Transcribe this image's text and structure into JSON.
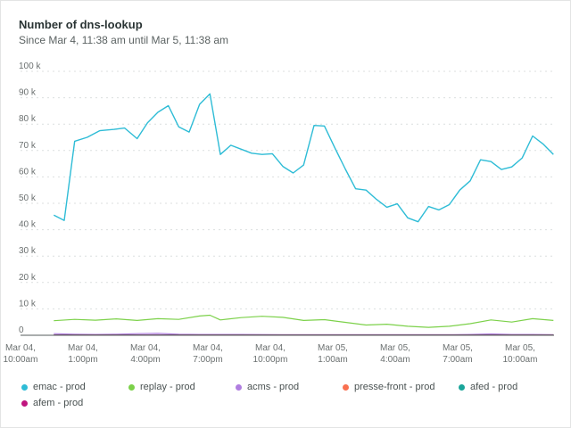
{
  "header": {
    "title": "Number of dns-lookup",
    "subtitle": "Since Mar 4, 11:38 am until Mar 5, 11:38 am"
  },
  "colors": {
    "emac": "#2ebcd6",
    "replay": "#7cd14a",
    "acms": "#b07ee0",
    "presse_front": "#f97050",
    "afed": "#1aa59a",
    "afem": "#c0157f",
    "grid": "#dcdfdf",
    "axis": "#555b5b"
  },
  "legend": [
    {
      "name": "emac - prod",
      "color": "#2ebcd6"
    },
    {
      "name": "replay - prod",
      "color": "#7cd14a"
    },
    {
      "name": "acms - prod",
      "color": "#b07ee0"
    },
    {
      "name": "presse-front - prod",
      "color": "#f97050"
    },
    {
      "name": "afed - prod",
      "color": "#1aa59a"
    },
    {
      "name": "afem - prod",
      "color": "#c0157f"
    }
  ],
  "chart_data": {
    "type": "line",
    "title": "Number of dns-lookup",
    "subtitle": "Since Mar 4, 11:38 am until Mar 5, 11:38 am",
    "ylim": [
      0,
      100000
    ],
    "y_ticks": [
      "0",
      "10 k",
      "20 k",
      "30 k",
      "40 k",
      "50 k",
      "60 k",
      "70 k",
      "80 k",
      "90 k",
      "100 k"
    ],
    "x_ticks": [
      {
        "line1": "Mar 04,",
        "line2": "10:00am",
        "t": 10
      },
      {
        "line1": "Mar 04,",
        "line2": "1:00pm",
        "t": 13
      },
      {
        "line1": "Mar 04,",
        "line2": "4:00pm",
        "t": 16
      },
      {
        "line1": "Mar 04,",
        "line2": "7:00pm",
        "t": 19
      },
      {
        "line1": "Mar 04,",
        "line2": "10:00pm",
        "t": 22
      },
      {
        "line1": "Mar 05,",
        "line2": "1:00am",
        "t": 25
      },
      {
        "line1": "Mar 05,",
        "line2": "4:00am",
        "t": 28
      },
      {
        "line1": "Mar 05,",
        "line2": "7:00am",
        "t": 31
      },
      {
        "line1": "Mar 05,",
        "line2": "10:00am",
        "t": 34
      }
    ],
    "x_range_hours": [
      10.0,
      35.63
    ],
    "grid": true,
    "legend_position": "bottom",
    "series": [
      {
        "name": "emac - prod",
        "color": "#2ebcd6",
        "t": [
          11.6,
          12.1,
          12.6,
          13.2,
          13.8,
          14.5,
          15.0,
          15.6,
          16.1,
          16.6,
          17.1,
          17.6,
          18.1,
          18.6,
          19.1,
          19.6,
          20.1,
          20.6,
          21.1,
          21.6,
          22.1,
          22.6,
          23.1,
          23.6,
          24.1,
          24.6,
          25.1,
          25.6,
          26.1,
          26.6,
          27.1,
          27.6,
          28.1,
          28.6,
          29.1,
          29.6,
          30.1,
          30.6,
          31.1,
          31.6,
          32.1,
          32.6,
          33.1,
          33.6,
          34.1,
          34.6,
          35.1,
          35.6
        ],
        "values": [
          45500,
          43500,
          73500,
          75000,
          77500,
          78000,
          78500,
          74500,
          80500,
          84500,
          87000,
          79000,
          77000,
          87500,
          91500,
          68500,
          72000,
          70500,
          69000,
          68500,
          68800,
          64000,
          61500,
          64500,
          79500,
          79300,
          71000,
          63000,
          55500,
          55000,
          51500,
          48500,
          49800,
          44500,
          43000,
          48800,
          47500,
          49500,
          55000,
          58500,
          66500,
          65800,
          62800,
          63800,
          67200,
          75500,
          72500,
          68500
        ]
      },
      {
        "name": "replay - prod",
        "color": "#7cd14a",
        "t": [
          11.6,
          12.6,
          13.6,
          14.6,
          15.6,
          16.6,
          17.6,
          18.6,
          19.1,
          19.6,
          20.6,
          21.6,
          22.6,
          23.6,
          24.6,
          25.6,
          26.6,
          27.6,
          28.6,
          29.6,
          30.6,
          31.6,
          32.6,
          33.6,
          34.6,
          35.6
        ],
        "values": [
          5500,
          6000,
          5700,
          6200,
          5600,
          6300,
          6000,
          7300,
          7600,
          5800,
          6700,
          7200,
          6800,
          5600,
          5900,
          4900,
          3900,
          4200,
          3400,
          3000,
          3400,
          4400,
          5800,
          5000,
          6300,
          5600
        ]
      },
      {
        "name": "acms - prod",
        "color": "#b07ee0",
        "t": [
          11.6,
          12.6,
          13.6,
          14.6,
          15.6,
          16.6,
          17.6,
          18.6,
          20.6,
          22.6,
          24.6,
          26.6,
          28.6,
          30.6,
          31.6,
          32.6,
          33.6,
          34.6,
          35.6
        ],
        "values": [
          600,
          400,
          300,
          400,
          600,
          700,
          400,
          300,
          300,
          250,
          250,
          200,
          200,
          200,
          300,
          500,
          300,
          300,
          250
        ]
      },
      {
        "name": "presse-front - prod",
        "color": "#f97050",
        "t": [
          11.6,
          35.6
        ],
        "values": [
          150,
          150
        ]
      },
      {
        "name": "afed - prod",
        "color": "#1aa59a",
        "t": [
          11.6,
          35.6
        ],
        "values": [
          100,
          100
        ]
      },
      {
        "name": "afem - prod",
        "color": "#c0157f",
        "t": [
          11.6,
          35.6
        ],
        "values": [
          80,
          80
        ]
      }
    ]
  }
}
